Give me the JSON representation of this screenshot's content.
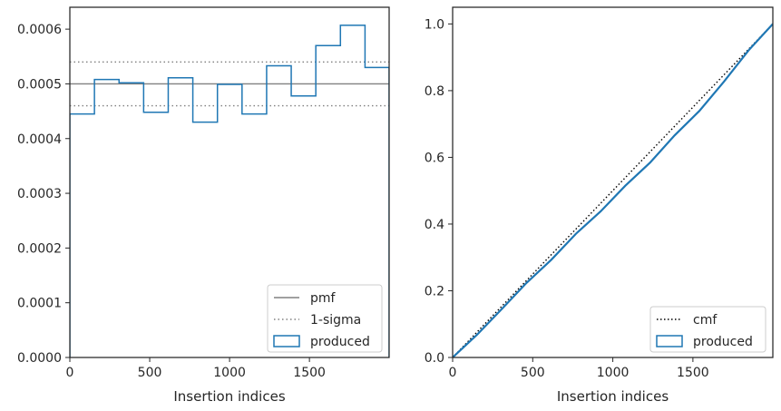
{
  "chart_data": [
    {
      "type": "step",
      "title": "",
      "xlabel": "Insertion indices",
      "ylabel": "",
      "xlim": [
        0,
        1999
      ],
      "ylim": [
        0,
        0.00064
      ],
      "xticks": [
        0,
        500,
        1000,
        1500
      ],
      "xtick_labels": [
        "0",
        "500",
        "1000",
        "1500"
      ],
      "yticks": [
        0,
        0.0001,
        0.0002,
        0.0003,
        0.0004,
        0.0005,
        0.0006
      ],
      "ytick_labels": [
        "0.0000",
        "0.0001",
        "0.0002",
        "0.0003",
        "0.0004",
        "0.0005",
        "0.0006"
      ],
      "grid": false,
      "legend_position": "bottom-right",
      "legend": [
        "pmf",
        "1-sigma",
        "produced"
      ],
      "reference_lines": [
        {
          "name": "pmf",
          "y": 0.0005,
          "style": "solid",
          "color": "#808080"
        },
        {
          "name": "1-sigma",
          "y": 0.00046,
          "style": "dotted",
          "color": "#808080"
        },
        {
          "name": "1-sigma",
          "y": 0.00054,
          "style": "dotted",
          "color": "#808080"
        }
      ],
      "series": [
        {
          "name": "produced",
          "color": "#1f77b4",
          "bin_edges": [
            0,
            154,
            308,
            462,
            616,
            770,
            924,
            1078,
            1232,
            1386,
            1540,
            1694,
            1848,
            1999
          ],
          "values": [
            0.000445,
            0.000508,
            0.000502,
            0.000448,
            0.000511,
            0.00043,
            0.000499,
            0.000445,
            0.000533,
            0.000478,
            0.00057,
            0.000607,
            0.00053
          ]
        }
      ]
    },
    {
      "type": "line",
      "title": "",
      "xlabel": "Insertion indices",
      "ylabel": "",
      "xlim": [
        0,
        1999
      ],
      "ylim": [
        0,
        1.05
      ],
      "xticks": [
        0,
        500,
        1000,
        1500
      ],
      "xtick_labels": [
        "0",
        "500",
        "1000",
        "1500"
      ],
      "yticks": [
        0,
        0.2,
        0.4,
        0.6,
        0.8,
        1.0
      ],
      "ytick_labels": [
        "0.0",
        "0.2",
        "0.4",
        "0.6",
        "0.8",
        "1.0"
      ],
      "grid": false,
      "legend_position": "bottom-right",
      "legend": [
        "cmf",
        "produced"
      ],
      "series": [
        {
          "name": "cmf",
          "style": "dotted",
          "color": "#000000",
          "x": [
            0,
            1999
          ],
          "y": [
            0,
            1.0
          ]
        },
        {
          "name": "produced",
          "color": "#1f77b4",
          "x": [
            0,
            154,
            308,
            462,
            616,
            770,
            924,
            1078,
            1232,
            1386,
            1540,
            1694,
            1848,
            1999
          ],
          "y": [
            0,
            0.069,
            0.146,
            0.224,
            0.293,
            0.371,
            0.438,
            0.515,
            0.584,
            0.666,
            0.739,
            0.827,
            0.921,
            1.0
          ]
        }
      ]
    }
  ]
}
